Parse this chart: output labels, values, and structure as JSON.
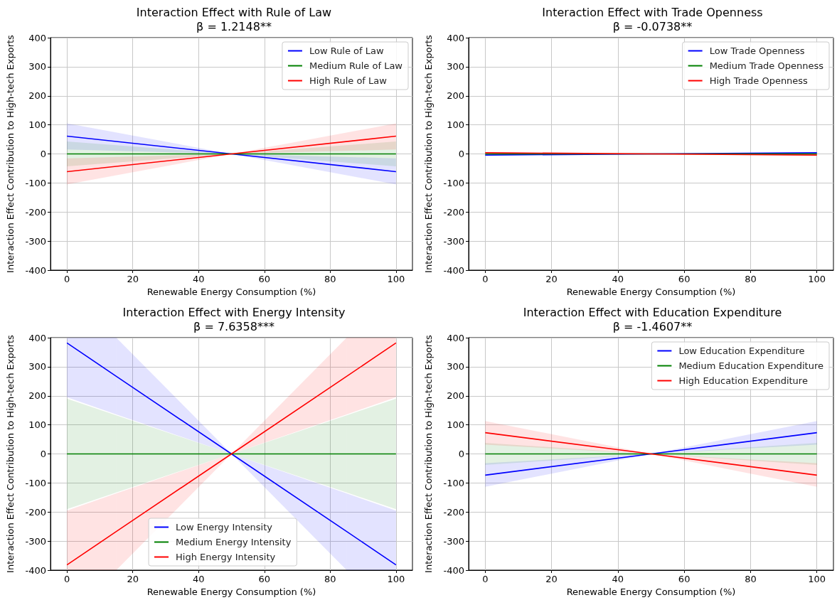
{
  "chart_data": [
    {
      "type": "line",
      "title": "Interaction Effect with Rule of Law",
      "subtitle": "β = 1.2148**",
      "xlabel": "Renewable Energy Consumption (%)",
      "ylabel": "Interaction Effect Contribution to High-tech Exports",
      "xlim": [
        -5,
        105
      ],
      "xticks": [
        0,
        20,
        40,
        60,
        80,
        100
      ],
      "ylim": [
        -400,
        400
      ],
      "yticks": [
        -400,
        -300,
        -200,
        -100,
        0,
        100,
        200,
        300,
        400
      ],
      "grid": true,
      "legend": "top right",
      "series": [
        {
          "name": "Low Rule of Law",
          "color": "#0000ff",
          "x": [
            0,
            50,
            100
          ],
          "values": [
            61,
            0,
            -61
          ],
          "lower": [
            15,
            0,
            -105
          ],
          "upper": [
            105,
            0,
            -15
          ]
        },
        {
          "name": "Medium Rule of Law",
          "color": "#008000",
          "x": [
            0,
            50,
            100
          ],
          "values": [
            0,
            0,
            0
          ],
          "lower": [
            -43,
            0,
            -43
          ],
          "upper": [
            43,
            0,
            43
          ]
        },
        {
          "name": "High Rule of Law",
          "color": "#ff0000",
          "x": [
            0,
            50,
            100
          ],
          "values": [
            -61,
            0,
            61
          ],
          "lower": [
            -105,
            0,
            15
          ],
          "upper": [
            -15,
            0,
            105
          ]
        }
      ]
    },
    {
      "type": "line",
      "title": "Interaction Effect with Trade Openness",
      "subtitle": "β = -0.0738**",
      "xlabel": "Renewable Energy Consumption (%)",
      "ylabel": "Interaction Effect Contribution to High-tech Exports",
      "xlim": [
        -5,
        105
      ],
      "xticks": [
        0,
        20,
        40,
        60,
        80,
        100
      ],
      "ylim": [
        -400,
        400
      ],
      "yticks": [
        -400,
        -300,
        -200,
        -100,
        0,
        100,
        200,
        300,
        400
      ],
      "grid": true,
      "legend": "top right",
      "series": [
        {
          "name": "Low Trade Openness",
          "color": "#0000ff",
          "x": [
            0,
            50,
            100
          ],
          "values": [
            -4,
            0,
            4
          ]
        },
        {
          "name": "Medium Trade Openness",
          "color": "#008000",
          "x": [
            0,
            50,
            100
          ],
          "values": [
            0,
            0,
            0
          ]
        },
        {
          "name": "High Trade Openness",
          "color": "#ff0000",
          "x": [
            0,
            50,
            100
          ],
          "values": [
            4,
            0,
            -4
          ]
        }
      ]
    },
    {
      "type": "line",
      "title": "Interaction Effect with Energy Intensity",
      "subtitle": "β = 7.6358***",
      "xlabel": "Renewable Energy Consumption (%)",
      "ylabel": "Interaction Effect Contribution to High-tech Exports",
      "xlim": [
        -5,
        105
      ],
      "xticks": [
        0,
        20,
        40,
        60,
        80,
        100
      ],
      "ylim": [
        -400,
        400
      ],
      "yticks": [
        -400,
        -300,
        -200,
        -100,
        0,
        100,
        200,
        300,
        400
      ],
      "grid": true,
      "legend": "bottom",
      "series": [
        {
          "name": "Low Energy Intensity",
          "color": "#0000ff",
          "x": [
            0,
            15,
            50,
            85,
            100
          ],
          "values": [
            382,
            267,
            0,
            -267,
            -382
          ],
          "lower": [
            195,
            136,
            0,
            -400,
            -400
          ],
          "upper": [
            400,
            400,
            0,
            -136,
            -195
          ]
        },
        {
          "name": "Medium Energy Intensity",
          "color": "#008000",
          "x": [
            0,
            15,
            50,
            85,
            100
          ],
          "values": [
            0,
            0,
            0,
            0,
            0
          ],
          "lower": [
            -190,
            -133,
            0,
            -133,
            -190
          ],
          "upper": [
            190,
            133,
            0,
            133,
            190
          ]
        },
        {
          "name": "High Energy Intensity",
          "color": "#ff0000",
          "x": [
            0,
            15,
            50,
            85,
            100
          ],
          "values": [
            -382,
            -267,
            0,
            267,
            382
          ],
          "lower": [
            -400,
            -400,
            0,
            136,
            195
          ],
          "upper": [
            -195,
            -136,
            0,
            400,
            400
          ]
        }
      ]
    },
    {
      "type": "line",
      "title": "Interaction Effect with Education Expenditure",
      "subtitle": "β = -1.4607**",
      "xlabel": "Renewable Energy Consumption (%)",
      "ylabel": "Interaction Effect Contribution to High-tech Exports",
      "xlim": [
        -5,
        105
      ],
      "xticks": [
        0,
        20,
        40,
        60,
        80,
        100
      ],
      "ylim": [
        -400,
        400
      ],
      "yticks": [
        -400,
        -300,
        -200,
        -100,
        0,
        100,
        200,
        300,
        400
      ],
      "grid": true,
      "legend": "top right",
      "series": [
        {
          "name": "Low Education Expenditure",
          "color": "#0000ff",
          "x": [
            0,
            50,
            100
          ],
          "values": [
            -73,
            0,
            73
          ],
          "lower": [
            -113,
            0,
            32
          ],
          "upper": [
            -32,
            0,
            113
          ]
        },
        {
          "name": "Medium Education Expenditure",
          "color": "#008000",
          "x": [
            0,
            50,
            100
          ],
          "values": [
            0,
            0,
            0
          ],
          "lower": [
            -38,
            0,
            -38
          ],
          "upper": [
            38,
            0,
            38
          ]
        },
        {
          "name": "High Education Expenditure",
          "color": "#ff0000",
          "x": [
            0,
            50,
            100
          ],
          "values": [
            73,
            0,
            -73
          ],
          "lower": [
            32,
            0,
            -113
          ],
          "upper": [
            113,
            0,
            -32
          ]
        }
      ]
    }
  ]
}
